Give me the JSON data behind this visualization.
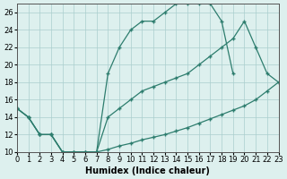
{
  "xlabel": "Humidex (Indice chaleur)",
  "xlim": [
    0,
    23
  ],
  "ylim": [
    10,
    27
  ],
  "yticks": [
    10,
    12,
    14,
    16,
    18,
    20,
    22,
    24,
    26
  ],
  "line1_x": [
    0,
    1,
    2,
    3,
    4,
    5,
    6,
    7,
    8,
    9,
    10,
    11,
    12,
    13,
    14,
    15,
    16,
    17,
    18,
    19
  ],
  "line1_y": [
    15,
    14,
    12,
    12,
    10,
    10,
    10,
    10,
    19,
    22,
    24,
    25,
    25,
    26,
    27,
    27,
    27,
    27,
    25,
    19
  ],
  "line2_x": [
    0,
    1,
    2,
    3,
    4,
    5,
    6,
    7,
    8,
    9,
    10,
    11,
    12,
    13,
    14,
    15,
    16,
    17,
    18,
    19,
    20,
    21,
    22,
    23
  ],
  "line2_y": [
    15,
    14,
    12,
    12,
    10,
    10,
    10,
    10,
    10.3,
    10.7,
    11,
    11.4,
    11.7,
    12,
    12.4,
    12.8,
    13.3,
    13.8,
    14.3,
    14.8,
    15.3,
    16,
    17,
    18
  ],
  "line3_x": [
    0,
    1,
    2,
    3,
    4,
    5,
    6,
    7,
    8,
    9,
    10,
    11,
    12,
    13,
    14,
    15,
    16,
    17,
    18,
    19,
    20,
    21,
    22,
    23
  ],
  "line3_y": [
    15,
    14,
    12,
    12,
    10,
    10,
    10,
    10,
    14,
    15,
    16,
    17,
    17.5,
    18,
    18.5,
    19,
    20,
    21,
    22,
    23,
    25,
    22,
    19,
    18
  ],
  "line_color": "#2d7d6e",
  "bg_color": "#ddf0ee",
  "grid_color": "#aacece",
  "label_fontsize": 7,
  "tick_fontsize": 6
}
